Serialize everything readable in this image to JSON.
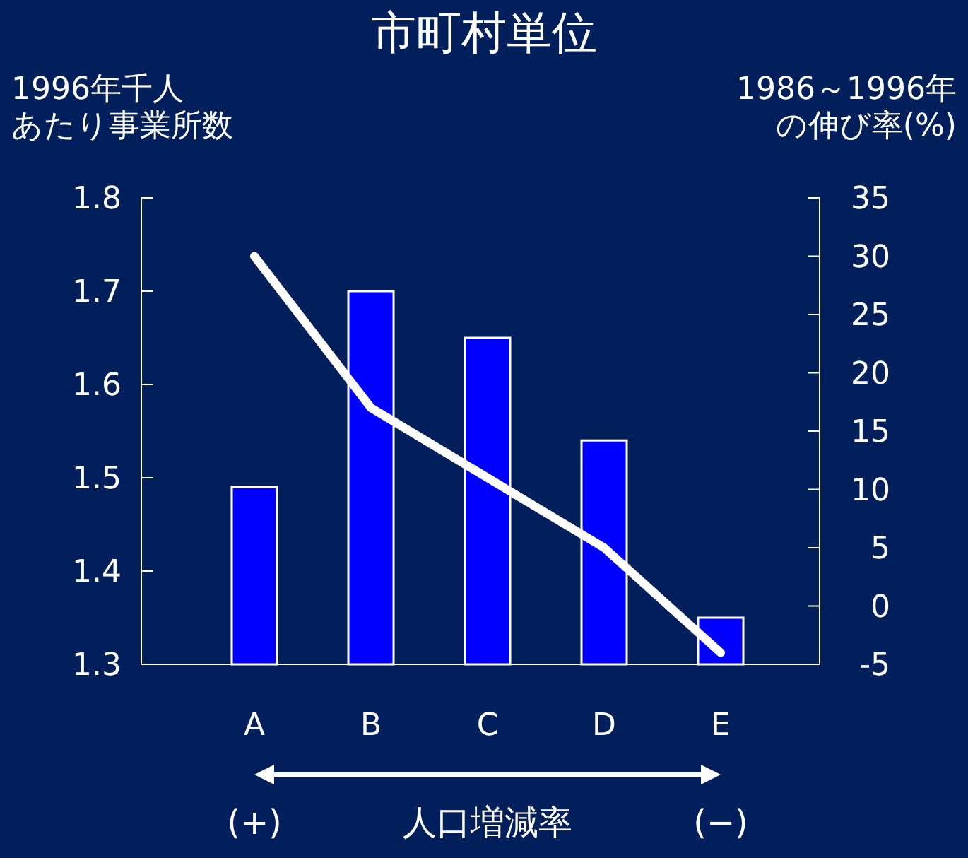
{
  "chart_data": {
    "type": "bar",
    "title": "市町村単位",
    "ylabel": "1996年千人あたり事業所数",
    "y2label": "1986～1996年の伸び率(%)",
    "categories": [
      "A",
      "B",
      "C",
      "D",
      "E"
    ],
    "series": [
      {
        "color": "#0000ff",
        "values": [
          1.49,
          1.7,
          1.65,
          1.54,
          1.35
        ]
      },
      {
        "type": "line",
        "axis": "y2",
        "color": "#ffffff",
        "values": [
          30,
          17,
          11,
          5,
          -4
        ]
      }
    ],
    "ylim": [
      1.3,
      1.8
    ],
    "yticks": [
      1.3,
      1.4,
      1.5,
      1.6,
      1.7,
      1.8
    ],
    "y2lim": [
      -5,
      35
    ],
    "y2ticks": [
      -5,
      0,
      5,
      10,
      15,
      20,
      25,
      30,
      35
    ],
    "annotations": [
      "(+)",
      "人口増減率",
      "(−)"
    ],
    "grid": false
  }
}
